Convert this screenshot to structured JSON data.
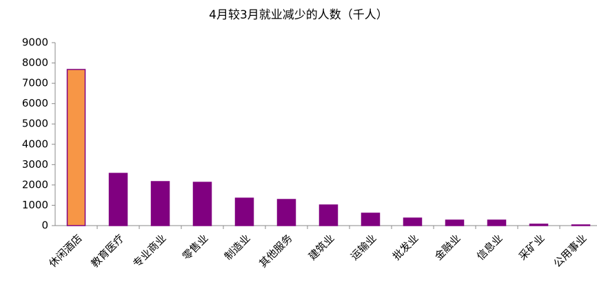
{
  "chart_data": {
    "type": "bar",
    "title": "4月较3月就业减少的人数（千人）",
    "categories": [
      "休闲酒店",
      "教育医疗",
      "专业商业",
      "零售业",
      "制造业",
      "其他服务",
      "建筑业",
      "运输业",
      "批发业",
      "金融业",
      "信息业",
      "采矿业",
      "公用事业"
    ],
    "values": [
      7680,
      2570,
      2165,
      2130,
      1350,
      1285,
      1015,
      610,
      370,
      270,
      270,
      70,
      35
    ],
    "colors": [
      "#f79646",
      "#800080",
      "#800080",
      "#800080",
      "#800080",
      "#800080",
      "#800080",
      "#800080",
      "#800080",
      "#800080",
      "#800080",
      "#800080",
      "#800080"
    ],
    "edge_color": "#800080",
    "ylim": [
      0,
      9000
    ],
    "yticks": [
      0,
      1000,
      2000,
      3000,
      4000,
      5000,
      6000,
      7000,
      8000,
      9000
    ],
    "grid": false
  }
}
